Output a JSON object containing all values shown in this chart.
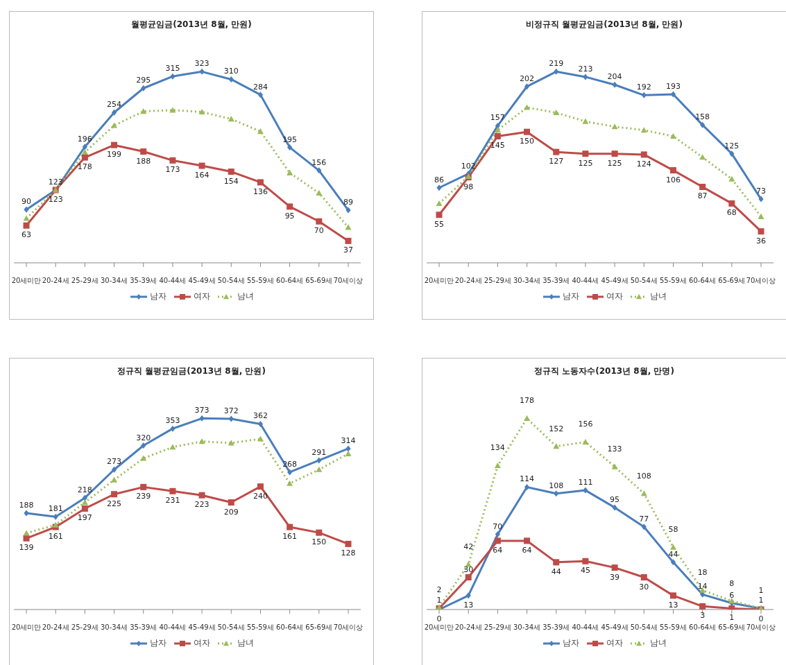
{
  "chart_data": [
    {
      "type": "line",
      "title": "월평균임금(2013년 8월, 만원)",
      "categories": [
        "20세미만",
        "20-24세",
        "25-29세",
        "30-34세",
        "35-39세",
        "40-44세",
        "45-49세",
        "50-54세",
        "55-59세",
        "60-64세",
        "65-69세",
        "70세이상"
      ],
      "tick_labels": "x",
      "grid": false,
      "legend": "bottom",
      "series": [
        {
          "name": "남자",
          "color": "#4a7ebb",
          "marker": "diamond",
          "line_style": "solid",
          "values": [
            90,
            123,
            196,
            254,
            295,
            315,
            323,
            310,
            284,
            195,
            156,
            89
          ],
          "value_labels": [
            "90",
            "123",
            "196",
            "254",
            "295",
            "315",
            "323",
            "310",
            "284",
            "195",
            "156",
            "89"
          ]
        },
        {
          "name": "여자",
          "color": "#be4b48",
          "marker": "square",
          "line_style": "solid",
          "values": [
            63,
            123,
            178,
            199,
            188,
            173,
            164,
            154,
            136,
            95,
            70,
            37
          ],
          "value_labels": [
            "63",
            "123",
            "178",
            "199",
            "188",
            "173",
            "164",
            "154",
            "136",
            "95",
            "70",
            "37"
          ]
        },
        {
          "name": "남녀",
          "color": "#9bbb59",
          "marker": "triangle",
          "line_style": "dotted",
          "values": [
            75,
            123,
            187,
            232,
            256,
            258,
            255,
            243,
            222,
            152,
            118,
            60
          ]
        }
      ]
    },
    {
      "type": "line",
      "title": "비정규직 월평균임금(2013년 8월, 만원)",
      "categories": [
        "20세미만",
        "20-24세",
        "25-29세",
        "30-34세",
        "35-39세",
        "40-44세",
        "45-49세",
        "50-54세",
        "55-59세",
        "60-64세",
        "65-69세",
        "70세이상"
      ],
      "tick_labels": "x",
      "grid": false,
      "legend": "bottom",
      "series": [
        {
          "name": "남자",
          "color": "#4a7ebb",
          "marker": "diamond",
          "line_style": "solid",
          "values": [
            86,
            102,
            157,
            202,
            219,
            213,
            204,
            192,
            193,
            158,
            125,
            73
          ],
          "value_labels": [
            "86",
            "102",
            "157",
            "202",
            "219",
            "213",
            "204",
            "192",
            "193",
            "158",
            "125",
            "73"
          ]
        },
        {
          "name": "여자",
          "color": "#be4b48",
          "marker": "square",
          "line_style": "solid",
          "values": [
            55,
            98,
            145,
            150,
            127,
            125,
            125,
            124,
            106,
            87,
            68,
            36
          ],
          "value_labels": [
            "55",
            "98",
            "145",
            "150",
            "127",
            "125",
            "125",
            "124",
            "106",
            "87",
            "68",
            "36"
          ]
        },
        {
          "name": "남녀",
          "color": "#9bbb59",
          "marker": "triangle",
          "line_style": "dotted",
          "values": [
            68,
            99,
            152,
            178,
            172,
            162,
            156,
            152,
            145,
            121,
            96,
            53
          ]
        }
      ]
    },
    {
      "type": "line",
      "title": "정규직 월평균임금(2013년 8월, 만원)",
      "categories": [
        "20세미만",
        "20-24세",
        "25-29세",
        "30-34세",
        "35-39세",
        "40-44세",
        "45-49세",
        "50-54세",
        "55-59세",
        "60-64세",
        "65-69세",
        "70세이상"
      ],
      "tick_labels": "x",
      "grid": false,
      "legend": "bottom",
      "series": [
        {
          "name": "남자",
          "color": "#4a7ebb",
          "marker": "diamond",
          "line_style": "solid",
          "values": [
            188,
            181,
            218,
            273,
            320,
            353,
            373,
            372,
            362,
            268,
            291,
            314
          ],
          "value_labels": [
            "188",
            "181",
            "218",
            "273",
            "320",
            "353",
            "373",
            "372",
            "362",
            "268",
            "291",
            "314"
          ]
        },
        {
          "name": "여자",
          "color": "#be4b48",
          "marker": "square",
          "line_style": "solid",
          "values": [
            139,
            161,
            197,
            225,
            239,
            231,
            223,
            209,
            240,
            161,
            150,
            128
          ],
          "value_labels": [
            "139",
            "161",
            "197",
            "225",
            "239",
            "231",
            "223",
            "209",
            "240",
            "161",
            "150",
            "128"
          ]
        },
        {
          "name": "남녀",
          "color": "#9bbb59",
          "marker": "triangle",
          "line_style": "dotted",
          "values": [
            149,
            165,
            209,
            253,
            295,
            317,
            328,
            325,
            333,
            246,
            273,
            304
          ]
        }
      ]
    },
    {
      "type": "line",
      "title": "정규직 노동자수(2013년 8월, 만명)",
      "categories": [
        "20세미만",
        "20-24세",
        "25-29세",
        "30-34세",
        "35-39세",
        "40-44세",
        "45-49세",
        "50-54세",
        "55-59세",
        "60-64세",
        "65-69세",
        "70세이상"
      ],
      "tick_labels": "x",
      "grid": false,
      "legend": "bottom",
      "series": [
        {
          "name": "남자",
          "color": "#4a7ebb",
          "marker": "diamond",
          "line_style": "solid",
          "values": [
            0,
            13,
            70,
            114,
            108,
            111,
            95,
            77,
            44,
            14,
            6,
            1
          ],
          "value_labels": [
            "0",
            "13",
            "70",
            "114",
            "108",
            "111",
            "95",
            "77",
            "44",
            "14",
            "6",
            "1"
          ]
        },
        {
          "name": "여자",
          "color": "#be4b48",
          "marker": "square",
          "line_style": "solid",
          "values": [
            1,
            30,
            64,
            64,
            44,
            45,
            39,
            30,
            13,
            3,
            1,
            0
          ],
          "value_labels": [
            "1",
            "30",
            "64",
            "64",
            "44",
            "45",
            "39",
            "30",
            "13",
            "3",
            "1",
            "0"
          ]
        },
        {
          "name": "남녀",
          "color": "#9bbb59",
          "marker": "triangle",
          "line_style": "dotted",
          "values": [
            2,
            42,
            134,
            178,
            152,
            156,
            133,
            108,
            58,
            18,
            8,
            1
          ],
          "value_labels": [
            "2",
            "42",
            "134",
            "178",
            "152",
            "156",
            "133",
            "108",
            "58",
            "18",
            "8",
            "1"
          ]
        }
      ]
    }
  ]
}
